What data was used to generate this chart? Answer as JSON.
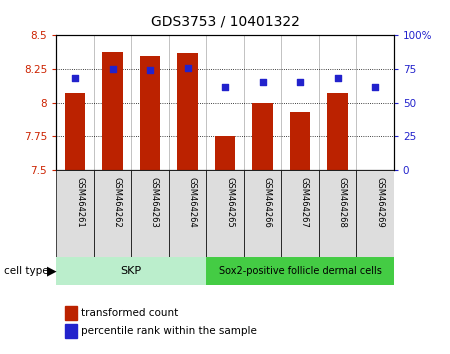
{
  "title": "GDS3753 / 10401322",
  "samples": [
    "GSM464261",
    "GSM464262",
    "GSM464263",
    "GSM464264",
    "GSM464265",
    "GSM464266",
    "GSM464267",
    "GSM464268",
    "GSM464269"
  ],
  "transformed_count": [
    8.07,
    8.38,
    8.35,
    8.37,
    7.75,
    8.0,
    7.93,
    8.07,
    7.5
  ],
  "percentile_rank": [
    68,
    75,
    74,
    76,
    62,
    65,
    65,
    68,
    62
  ],
  "ylim_left": [
    7.5,
    8.5
  ],
  "ylim_right": [
    0,
    100
  ],
  "yticks_left": [
    7.5,
    7.75,
    8.0,
    8.25,
    8.5
  ],
  "yticks_right": [
    0,
    25,
    50,
    75,
    100
  ],
  "ytick_labels_left": [
    "7.5",
    "7.75",
    "8",
    "8.25",
    "8.5"
  ],
  "ytick_labels_right": [
    "0",
    "25",
    "50",
    "75",
    "100%"
  ],
  "bar_color": "#bb2200",
  "dot_color": "#2222cc",
  "bar_bottom": 7.5,
  "skp_color": "#bbeecc",
  "sox_color": "#44cc44",
  "cell_type_label": "cell type",
  "legend_bar_label": "transformed count",
  "legend_dot_label": "percentile rank within the sample",
  "tick_color_left": "#cc2200",
  "tick_color_right": "#2222cc",
  "grid_yticks": [
    7.75,
    8.0,
    8.25
  ],
  "skp_count": 4,
  "sox_count": 5
}
